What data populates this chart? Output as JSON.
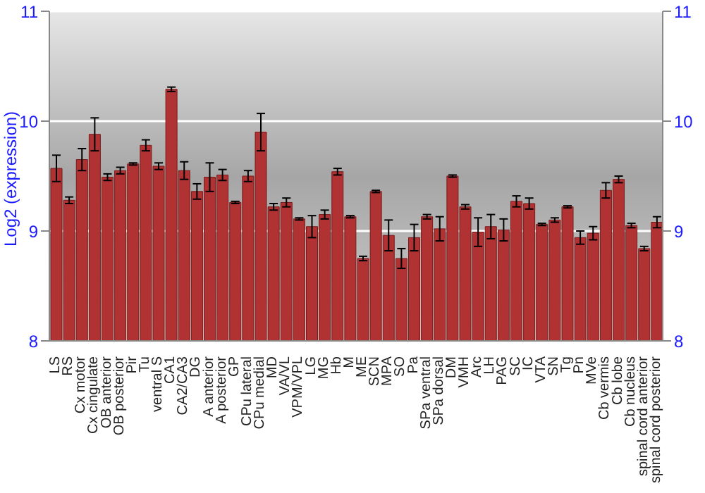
{
  "chart_data": {
    "type": "bar",
    "ylabel": "Log2 (expression)",
    "categories": [
      "LS",
      "RS",
      "Cx motor",
      "Cx cingulate",
      "OB anterior",
      "OB posterior",
      "Pir",
      "Tu",
      "ventral S",
      "CA1",
      "CA2/CA3",
      "DG",
      "A anterior",
      "A posterior",
      "GP",
      "CPu lateral",
      "CPu medial",
      "MD",
      "VA/VL",
      "VPM/VPL",
      "LG",
      "MG",
      "Hb",
      "M",
      "ME",
      "SCN",
      "MPA",
      "SO",
      "Pa",
      "SPa ventral",
      "SPa dorsal",
      "DM",
      "VMH",
      "Arc",
      "LH",
      "PAG",
      "SC",
      "IC",
      "VTA",
      "SN",
      "Tg",
      "Pn",
      "MVe",
      "Cb vermis",
      "Cb lobe",
      "Cb nucleus",
      "spinal cord anterior",
      "spinal cord posterior"
    ],
    "values": [
      9.57,
      9.28,
      9.65,
      9.88,
      9.49,
      9.55,
      9.61,
      9.78,
      9.59,
      10.29,
      9.55,
      9.36,
      9.49,
      9.51,
      9.26,
      9.5,
      9.9,
      9.22,
      9.26,
      9.11,
      9.04,
      9.15,
      9.54,
      9.13,
      8.75,
      9.36,
      8.96,
      8.75,
      8.94,
      9.13,
      9.02,
      9.5,
      9.22,
      8.99,
      9.04,
      9.01,
      9.27,
      9.25,
      9.06,
      9.1,
      9.22,
      8.94,
      8.98,
      9.37,
      9.47,
      9.05,
      8.84,
      9.08
    ],
    "errors": [
      0.12,
      0.03,
      0.1,
      0.15,
      0.03,
      0.03,
      0.01,
      0.05,
      0.03,
      0.02,
      0.08,
      0.07,
      0.13,
      0.05,
      0.01,
      0.05,
      0.17,
      0.03,
      0.04,
      0.01,
      0.1,
      0.04,
      0.03,
      0.01,
      0.02,
      0.01,
      0.14,
      0.09,
      0.12,
      0.02,
      0.11,
      0.01,
      0.02,
      0.13,
      0.11,
      0.1,
      0.05,
      0.05,
      0.01,
      0.02,
      0.01,
      0.06,
      0.06,
      0.07,
      0.03,
      0.02,
      0.02,
      0.05
    ],
    "color": "#b03232",
    "ylim": [
      8,
      11
    ],
    "yticks": [
      8,
      9,
      10,
      11
    ],
    "y2lim": [
      8,
      11
    ],
    "y2ticks": [
      8,
      9,
      10,
      11
    ],
    "grid": "y",
    "legend": false
  }
}
